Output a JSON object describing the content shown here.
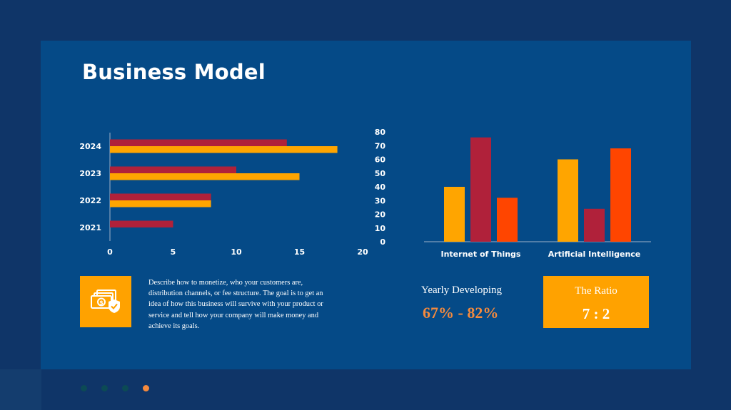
{
  "header": {
    "title": "Business Model"
  },
  "chart_data": [
    {
      "type": "bar",
      "orientation": "horizontal",
      "categories": [
        "2021",
        "2022",
        "2023",
        "2024"
      ],
      "series": [
        {
          "values": [
            5,
            8,
            10,
            14
          ],
          "color": "#b0213a"
        },
        {
          "values": [
            0,
            8,
            15,
            18
          ],
          "color": "#ffa500"
        }
      ],
      "xlim": [
        0,
        20
      ],
      "xticks": [
        "0",
        "5",
        "10",
        "15",
        "20"
      ],
      "grid": false,
      "legend": "none"
    },
    {
      "type": "bar",
      "categories": [
        "Internet of Things",
        "Artificial Intelligence"
      ],
      "series": [
        {
          "values": [
            40,
            60
          ],
          "color": "#ffa500"
        },
        {
          "values": [
            76,
            24
          ],
          "color": "#b0213a"
        },
        {
          "values": [
            32,
            68
          ],
          "color": "#ff4500"
        }
      ],
      "ylim": [
        0,
        80
      ],
      "yticks": [
        "0",
        "10",
        "20",
        "30",
        "40",
        "50",
        "60",
        "70",
        "80"
      ],
      "grid": false,
      "legend": "none"
    }
  ],
  "description": {
    "icon": "money-shield-icon",
    "text": "Describe how to monetize, who your customers are, distribution channels, or fee structure. The goal is to get an idea of how this business will survive with your product or service and tell how your company will make money and achieve its goals."
  },
  "stats": {
    "yearly_label": "Yearly Developing",
    "yearly_value": "67% - 82%",
    "ratio_label": "The Ratio",
    "ratio_value": "7 : 2"
  },
  "pagination": {
    "dots": [
      {
        "color": "#0c4a55",
        "active": false
      },
      {
        "color": "#0c4a55",
        "active": false
      },
      {
        "color": "#0c4a55",
        "active": false
      },
      {
        "color": "#f58a3d",
        "active": true
      }
    ]
  }
}
